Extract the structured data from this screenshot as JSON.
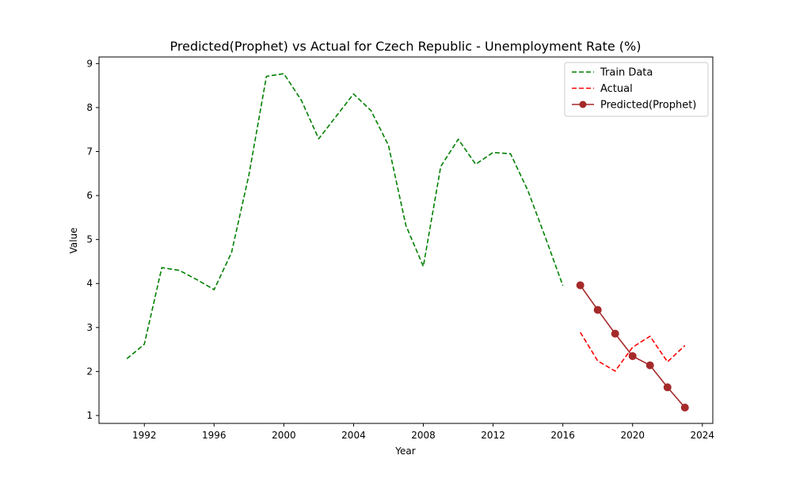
{
  "chart_data": {
    "type": "line",
    "title": "Predicted(Prophet) vs Actual for Czech Republic - Unemployment Rate (%)",
    "xlabel": "Year",
    "ylabel": "Value",
    "xlim": [
      1989.4,
      2024.6
    ],
    "ylim": [
      0.82,
      9.15
    ],
    "xticks": [
      1992,
      1996,
      2000,
      2004,
      2008,
      2012,
      2016,
      2020,
      2024
    ],
    "yticks": [
      1,
      2,
      3,
      4,
      5,
      6,
      7,
      8,
      9
    ],
    "grid": false,
    "legend": "top-right",
    "series": [
      {
        "name": "Train Data",
        "color": "#008000",
        "style": "dashed",
        "marker": "none",
        "x": [
          1991,
          1992,
          1993,
          1994,
          1995,
          1996,
          1997,
          1998,
          1999,
          2000,
          2001,
          2002,
          2003,
          2004,
          2005,
          2006,
          2007,
          2008,
          2009,
          2010,
          2011,
          2012,
          2013,
          2014,
          2015,
          2016
        ],
        "y": [
          2.29,
          2.62,
          4.36,
          4.3,
          4.09,
          3.86,
          4.7,
          6.47,
          8.71,
          8.77,
          8.17,
          7.29,
          7.8,
          8.31,
          7.93,
          7.14,
          5.32,
          4.39,
          6.66,
          7.28,
          6.71,
          6.98,
          6.95,
          6.11,
          5.05,
          3.95
        ]
      },
      {
        "name": "Actual",
        "color": "#ff0000",
        "style": "dashed",
        "marker": "none",
        "x": [
          2017,
          2018,
          2019,
          2020,
          2021,
          2022,
          2023
        ],
        "y": [
          2.89,
          2.24,
          2.01,
          2.55,
          2.8,
          2.22,
          2.59
        ]
      },
      {
        "name": "Predicted(Prophet)",
        "color": "#a52a2a",
        "style": "solid",
        "marker": "circle",
        "x": [
          2017,
          2018,
          2019,
          2020,
          2021,
          2022,
          2023
        ],
        "y": [
          3.96,
          3.4,
          2.86,
          2.35,
          2.14,
          1.64,
          1.18
        ]
      }
    ]
  }
}
